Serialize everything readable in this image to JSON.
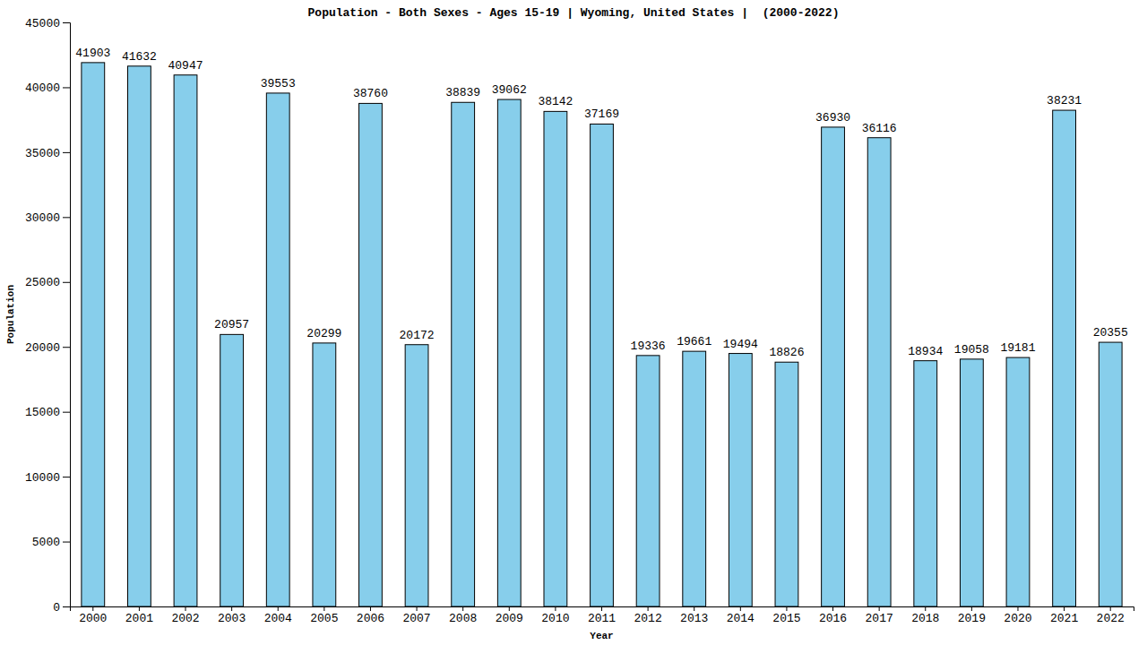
{
  "chart_data": {
    "type": "bar",
    "title": "Population - Both Sexes - Ages 15-19 | Wyoming, United States |  (2000-2022)",
    "x_label": "Year",
    "y_label": "Population",
    "categories": [
      "2000",
      "2001",
      "2002",
      "2003",
      "2004",
      "2005",
      "2006",
      "2007",
      "2008",
      "2009",
      "2010",
      "2011",
      "2012",
      "2013",
      "2014",
      "2015",
      "2016",
      "2017",
      "2018",
      "2019",
      "2020",
      "2021",
      "2022"
    ],
    "values": [
      41903,
      41632,
      40947,
      20957,
      39553,
      20299,
      38760,
      20172,
      38839,
      39062,
      38142,
      37169,
      19336,
      19661,
      19494,
      18826,
      36930,
      36116,
      18934,
      19058,
      19181,
      38231,
      20355
    ],
    "color": "#87ceeb",
    "ylim": [
      0,
      45000
    ],
    "yticks": [
      0,
      5000,
      10000,
      15000,
      20000,
      25000,
      30000,
      35000,
      40000,
      45000
    ],
    "grid": false,
    "data_labels": true
  }
}
